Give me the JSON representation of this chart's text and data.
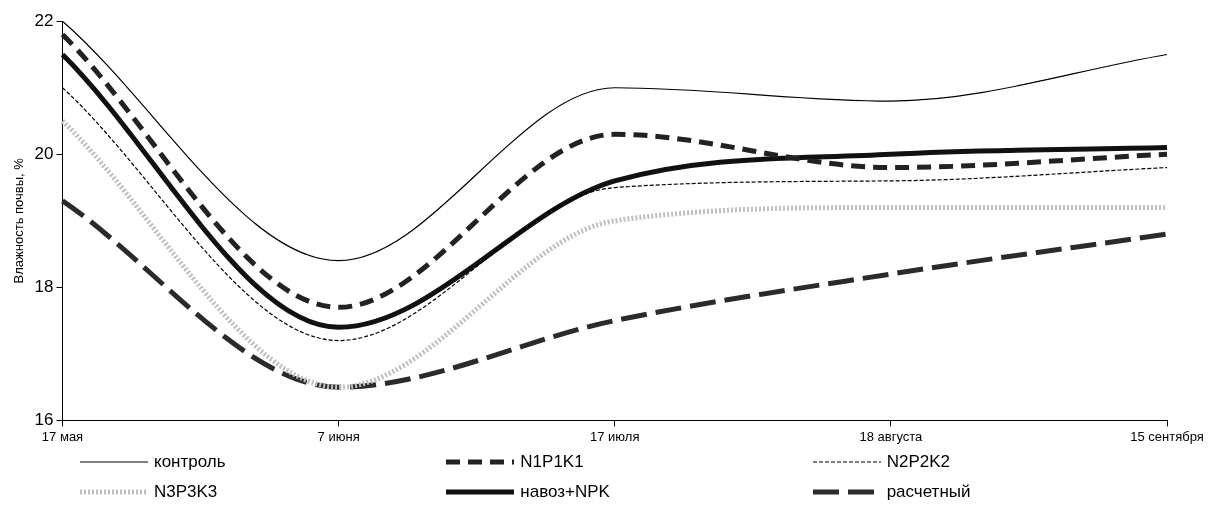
{
  "chart_data": {
    "type": "line",
    "ylabel": "Влажность почвы, %",
    "categories": [
      "17 мая",
      "7 июня",
      "17 июля",
      "18 августа",
      "15 сентября"
    ],
    "ylim": [
      16,
      22
    ],
    "yticks": [
      16,
      18,
      20,
      22
    ],
    "grid": false,
    "legend": "bottom",
    "marker": "none",
    "series": [
      {
        "name": "контроль",
        "color": "#000000",
        "line_style": "solid",
        "values": [
          22,
          18.4,
          21,
          20.8,
          21.5
        ]
      },
      {
        "name": "N1P1K1",
        "color": "#222222",
        "line_style": "dashed",
        "values": [
          21.8,
          17.7,
          20.3,
          19.8,
          20
        ]
      },
      {
        "name": "N2P2K2",
        "color": "#000000",
        "line_style": "dashed",
        "values": [
          21,
          17.2,
          19.5,
          19.6,
          19.8
        ]
      },
      {
        "name": "N3P3K3",
        "color": "#bfbfbf",
        "line_style": "dotted",
        "values": [
          20.5,
          16.5,
          19,
          19.2,
          19.2
        ]
      },
      {
        "name": "навоз+NPK",
        "color": "#111111",
        "line_style": "solid",
        "values": [
          21.5,
          17.4,
          19.6,
          20,
          20.1
        ]
      },
      {
        "name": "расчетный",
        "color": "#2b2b2b",
        "line_style": "dashed",
        "values": [
          19.3,
          16.5,
          17.5,
          18.2,
          18.8
        ]
      }
    ]
  }
}
